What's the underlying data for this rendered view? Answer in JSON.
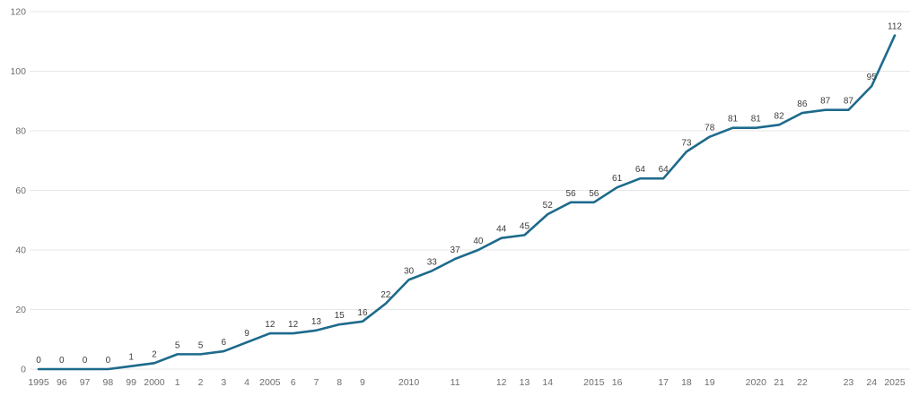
{
  "chart_data": {
    "type": "line",
    "title": "",
    "xlabel": "",
    "ylabel": "",
    "x_tick_labels": [
      "1995",
      "96",
      "97",
      "98",
      "99",
      "2000",
      "1",
      "2",
      "3",
      "4",
      "2005",
      "6",
      "7",
      "8",
      "9",
      "",
      "2010",
      "",
      "11",
      "",
      "12",
      "13",
      "14",
      "",
      "2015",
      "16",
      "",
      "17",
      "18",
      "19",
      "",
      "2020",
      "21",
      "22",
      "",
      "23",
      "24",
      "2025"
    ],
    "values": [
      0,
      0,
      0,
      0,
      1,
      2,
      5,
      5,
      6,
      9,
      12,
      12,
      13,
      15,
      16,
      22,
      30,
      33,
      37,
      40,
      44,
      45,
      52,
      56,
      56,
      61,
      64,
      64,
      73,
      78,
      81,
      81,
      82,
      86,
      87,
      87,
      95,
      112
    ],
    "data_labels": [
      0,
      0,
      0,
      0,
      1,
      2,
      5,
      5,
      6,
      9,
      12,
      12,
      13,
      15,
      16,
      22,
      30,
      33,
      37,
      40,
      44,
      45,
      52,
      56,
      56,
      61,
      64,
      64,
      73,
      78,
      81,
      81,
      82,
      86,
      87,
      87,
      95,
      112
    ],
    "y_ticks": [
      0,
      20,
      40,
      60,
      80,
      100,
      120
    ],
    "ylim": [
      0,
      120
    ],
    "grid": "horizontal",
    "legend": "none",
    "colors": {
      "line": "#1d6a8c",
      "grid": "#e7e7e7",
      "tick_text": "#6e6e6e",
      "data_label_text": "#3c3c3c",
      "background": "#ffffff"
    }
  }
}
